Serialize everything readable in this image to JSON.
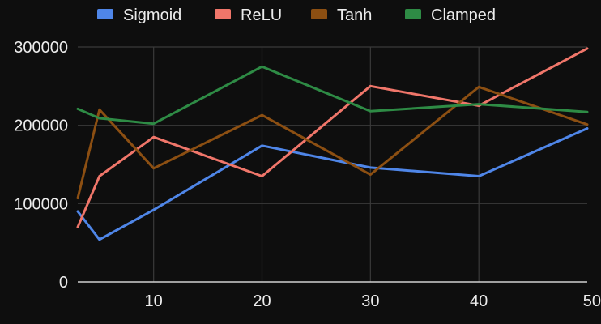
{
  "chart_data": {
    "type": "line",
    "title": "",
    "xlabel": "",
    "ylabel": "",
    "xlim": [
      3,
      50
    ],
    "ylim": [
      0,
      300000
    ],
    "x_ticks": [
      10,
      20,
      30,
      40,
      50
    ],
    "y_ticks": [
      0,
      100000,
      200000,
      300000
    ],
    "x_tick_labels": [
      "10",
      "20",
      "30",
      "40",
      "50"
    ],
    "y_tick_labels": [
      "0",
      "100000",
      "200000",
      "300000"
    ],
    "grid": true,
    "legend_position": "top",
    "series": [
      {
        "name": "Sigmoid",
        "color": "#4f86e8",
        "points": [
          [
            3,
            90000
          ],
          [
            5,
            54000
          ],
          [
            10,
            92000
          ],
          [
            20,
            174000
          ],
          [
            30,
            146000
          ],
          [
            40,
            135000
          ],
          [
            50,
            196000
          ]
        ]
      },
      {
        "name": "ReLU",
        "color": "#f0766a",
        "points": [
          [
            3,
            70000
          ],
          [
            5,
            135000
          ],
          [
            10,
            185000
          ],
          [
            20,
            135000
          ],
          [
            30,
            250000
          ],
          [
            40,
            225000
          ],
          [
            50,
            298000
          ]
        ]
      },
      {
        "name": "Tanh",
        "color": "#8c4f12",
        "points": [
          [
            3,
            107000
          ],
          [
            5,
            220000
          ],
          [
            10,
            145000
          ],
          [
            20,
            213000
          ],
          [
            30,
            137000
          ],
          [
            40,
            249000
          ],
          [
            50,
            201000
          ]
        ]
      },
      {
        "name": "Clamped",
        "color": "#2e8b45",
        "points": [
          [
            3,
            221000
          ],
          [
            5,
            209000
          ],
          [
            10,
            202000
          ],
          [
            20,
            275000
          ],
          [
            30,
            218000
          ],
          [
            40,
            227000
          ],
          [
            50,
            217000
          ]
        ]
      }
    ]
  }
}
